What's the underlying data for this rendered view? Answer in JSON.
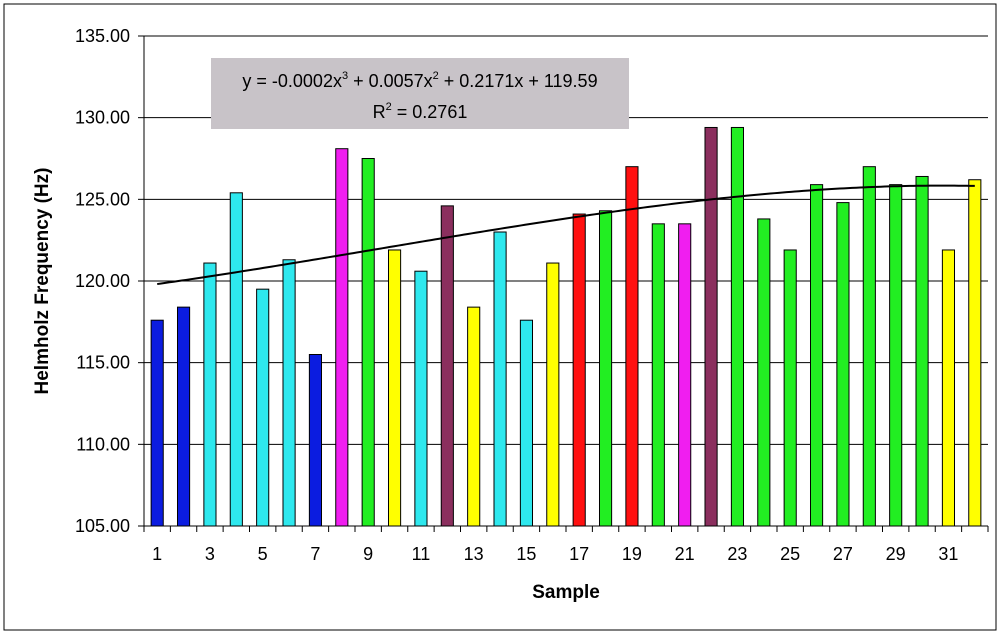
{
  "chart_data": {
    "type": "bar",
    "xlabel": "Sample",
    "ylabel": "Helmholz Frequency (Hz)",
    "ylim": [
      105,
      135
    ],
    "yticks": [
      "105.00",
      "110.00",
      "115.00",
      "120.00",
      "125.00",
      "130.00",
      "135.00"
    ],
    "xtick_labels": [
      "1",
      "3",
      "5",
      "7",
      "9",
      "11",
      "13",
      "15",
      "17",
      "19",
      "21",
      "23",
      "25",
      "27",
      "29",
      "31"
    ],
    "grid": true,
    "x": [
      1,
      2,
      3,
      4,
      5,
      6,
      7,
      8,
      9,
      10,
      11,
      12,
      13,
      14,
      15,
      16,
      17,
      18,
      19,
      20,
      21,
      22,
      23,
      24,
      25,
      26,
      27,
      28,
      29,
      30,
      31,
      32
    ],
    "values": [
      117.6,
      118.4,
      121.1,
      125.4,
      119.5,
      121.3,
      115.5,
      128.1,
      127.5,
      121.9,
      120.6,
      124.6,
      118.4,
      123.0,
      117.6,
      121.1,
      124.1,
      124.3,
      127.0,
      123.5,
      123.5,
      129.4,
      129.4,
      123.8,
      121.9,
      125.9,
      124.8,
      127.0,
      125.9,
      126.4,
      121.9,
      126.2
    ],
    "bar_colors": [
      "#0b1ce0",
      "#0b1ce0",
      "#2ee8ee",
      "#2ee8ee",
      "#2ee8ee",
      "#2ee8ee",
      "#0b1ce0",
      "#f01ef0",
      "#22ee22",
      "#ffff00",
      "#2ee8ee",
      "#8b2f5e",
      "#ffff00",
      "#2ee8ee",
      "#2ee8ee",
      "#ffff00",
      "#ff1010",
      "#22ee22",
      "#ff1010",
      "#22ee22",
      "#f01ef0",
      "#8b2f5e",
      "#22ee22",
      "#22ee22",
      "#22ee22",
      "#22ee22",
      "#22ee22",
      "#22ee22",
      "#22ee22",
      "#22ee22",
      "#ffff00",
      "#ffff00"
    ],
    "trendline": {
      "type": "polynomial",
      "order": 3,
      "coefficients": [
        -0.0002,
        0.0057,
        0.2171,
        119.59
      ],
      "equation_text": {
        "prefix": "y = -0.0002x",
        "exp1": "3",
        "mid1": " + 0.0057x",
        "exp2": "2",
        "suffix": " + 0.2171x + 119.59"
      },
      "r2_text": {
        "prefix": "R",
        "exp": "2",
        "suffix": " = 0.2761"
      },
      "label_background": "#c8c3c8"
    },
    "plot_background": "#ffffff",
    "gridline_color": "#000000"
  }
}
